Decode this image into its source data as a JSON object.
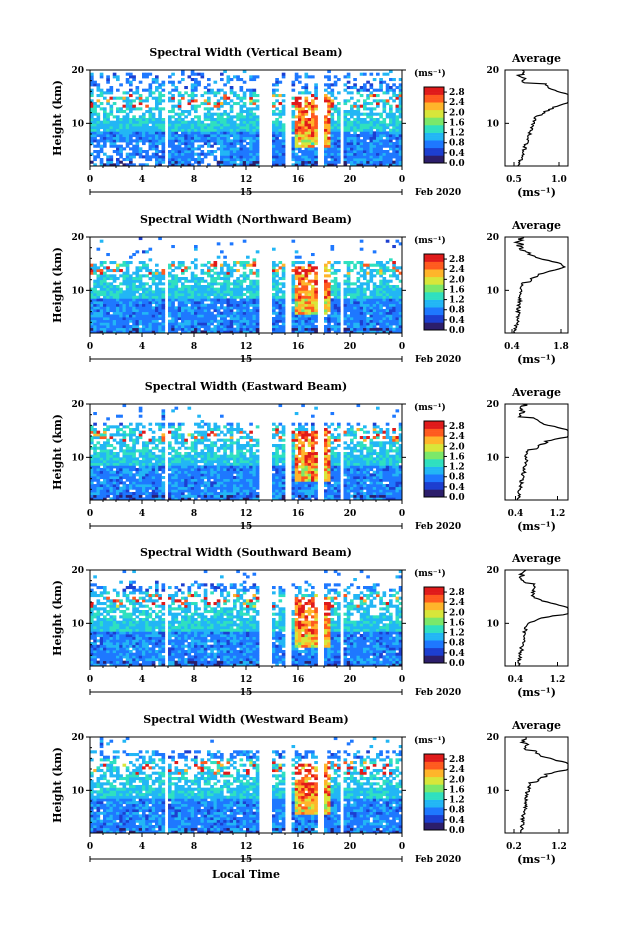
{
  "chart_data": [
    {
      "type": "heatmap",
      "title": "Spectral Width (Vertical Beam)",
      "ylabel": "Height (km)",
      "yticks": [
        "20",
        "10"
      ],
      "ylim": [
        2,
        20
      ],
      "xticks": [
        "0",
        "4",
        "8",
        "12",
        "16",
        "20",
        "0"
      ],
      "xlim": [
        0,
        24
      ],
      "date_day": "15",
      "date_label": "Feb 2020",
      "colorbar_unit": "(ms⁻¹)",
      "colorbar_ticks": [
        "2.8",
        "2.4",
        "2.0",
        "1.6",
        "1.2",
        "0.8",
        "0.4",
        "0.0"
      ],
      "colorbar_range": [
        0,
        3.0
      ],
      "profile": {
        "title": "Average",
        "yticks": [
          "20",
          "10"
        ],
        "xticks": [
          "0.5",
          "1.0"
        ],
        "xlim": [
          0.4,
          1.1
        ],
        "xlabel": "(ms⁻¹)",
        "peak_value": 0.95,
        "peak_height": 14.5,
        "low_value": 0.55
      }
    },
    {
      "type": "heatmap",
      "title": "Spectral Width (Northward Beam)",
      "ylabel": "Height (km)",
      "yticks": [
        "20",
        "10"
      ],
      "ylim": [
        2,
        20
      ],
      "xticks": [
        "0",
        "4",
        "8",
        "12",
        "16",
        "20",
        "0"
      ],
      "xlim": [
        0,
        24
      ],
      "date_day": "15",
      "date_label": "Feb 2020",
      "colorbar_unit": "(ms⁻¹)",
      "colorbar_ticks": [
        "2.8",
        "2.4",
        "2.0",
        "1.6",
        "1.2",
        "0.8",
        "0.4",
        "0.0"
      ],
      "colorbar_range": [
        0,
        3.0
      ],
      "profile": {
        "title": "Average",
        "yticks": [
          "20",
          "10"
        ],
        "xticks": [
          "0.4",
          "1.8"
        ],
        "xlim": [
          0.2,
          2.0
        ],
        "xlabel": "(ms⁻¹)",
        "peak_value": 1.65,
        "peak_height": 14.5,
        "low_value": 0.5
      }
    },
    {
      "type": "heatmap",
      "title": "Spectral Width (Eastward Beam)",
      "ylabel": "Height (km)",
      "yticks": [
        "20",
        "10"
      ],
      "ylim": [
        2,
        20
      ],
      "xticks": [
        "0",
        "4",
        "8",
        "12",
        "16",
        "20",
        "0"
      ],
      "xlim": [
        0,
        24
      ],
      "date_day": "15",
      "date_label": "Feb 2020",
      "colorbar_unit": "(ms⁻¹)",
      "colorbar_ticks": [
        "2.8",
        "2.4",
        "2.0",
        "1.6",
        "1.2",
        "0.8",
        "0.4",
        "0.0"
      ],
      "colorbar_range": [
        0,
        3.0
      ],
      "profile": {
        "title": "Average",
        "yticks": [
          "20",
          "10"
        ],
        "xticks": [
          "0.4",
          "1.2"
        ],
        "xlim": [
          0.2,
          1.4
        ],
        "xlabel": "(ms⁻¹)",
        "peak_value": 1.3,
        "peak_height": 14.5,
        "low_value": 0.45
      }
    },
    {
      "type": "heatmap",
      "title": "Spectral Width (Southward Beam)",
      "ylabel": "Height (km)",
      "yticks": [
        "20",
        "10"
      ],
      "ylim": [
        2,
        20
      ],
      "xticks": [
        "0",
        "4",
        "8",
        "12",
        "16",
        "20",
        "0"
      ],
      "xlim": [
        0,
        24
      ],
      "date_day": "15",
      "date_label": "Feb 2020",
      "colorbar_unit": "(ms⁻¹)",
      "colorbar_ticks": [
        "2.8",
        "2.4",
        "2.0",
        "1.6",
        "1.2",
        "0.8",
        "0.4",
        "0.0"
      ],
      "colorbar_range": [
        0,
        3.0
      ],
      "profile": {
        "title": "Average",
        "yticks": [
          "20",
          "10"
        ],
        "xticks": [
          "0.4",
          "1.2"
        ],
        "xlim": [
          0.2,
          1.4
        ],
        "xlabel": "(ms⁻¹)",
        "peak_value": 1.25,
        "peak_height": 12.5,
        "low_value": 0.45
      }
    },
    {
      "type": "heatmap",
      "title": "Spectral Width (Westward Beam)",
      "ylabel": "Height (km)",
      "yticks": [
        "20",
        "10"
      ],
      "ylim": [
        2,
        20
      ],
      "xticks": [
        "0",
        "4",
        "8",
        "12",
        "16",
        "20",
        "0"
      ],
      "xlim": [
        0,
        24
      ],
      "date_day": "15",
      "date_label": "Feb 2020",
      "colorbar_unit": "(ms⁻¹)",
      "colorbar_ticks": [
        "2.8",
        "2.4",
        "2.0",
        "1.6",
        "1.2",
        "0.8",
        "0.4",
        "0.0"
      ],
      "colorbar_range": [
        0,
        3.0
      ],
      "profile": {
        "title": "Average",
        "yticks": [
          "20",
          "10"
        ],
        "xticks": [
          "0.2",
          "1.2"
        ],
        "xlim": [
          0.0,
          1.4
        ],
        "xlabel": "(ms⁻¹)",
        "peak_value": 1.3,
        "peak_height": 14.5,
        "low_value": 0.35
      }
    }
  ],
  "footer": {
    "xlabel": "Local Time"
  },
  "colors": {
    "colormap": [
      "#2c1e6b",
      "#1d3fd0",
      "#1e78ff",
      "#22b6f5",
      "#2fe0c0",
      "#7be86a",
      "#d8e63a",
      "#ffb52b",
      "#ff5a1e",
      "#e01a1a"
    ],
    "no_data": "#ffffff",
    "axes": "#000000"
  }
}
